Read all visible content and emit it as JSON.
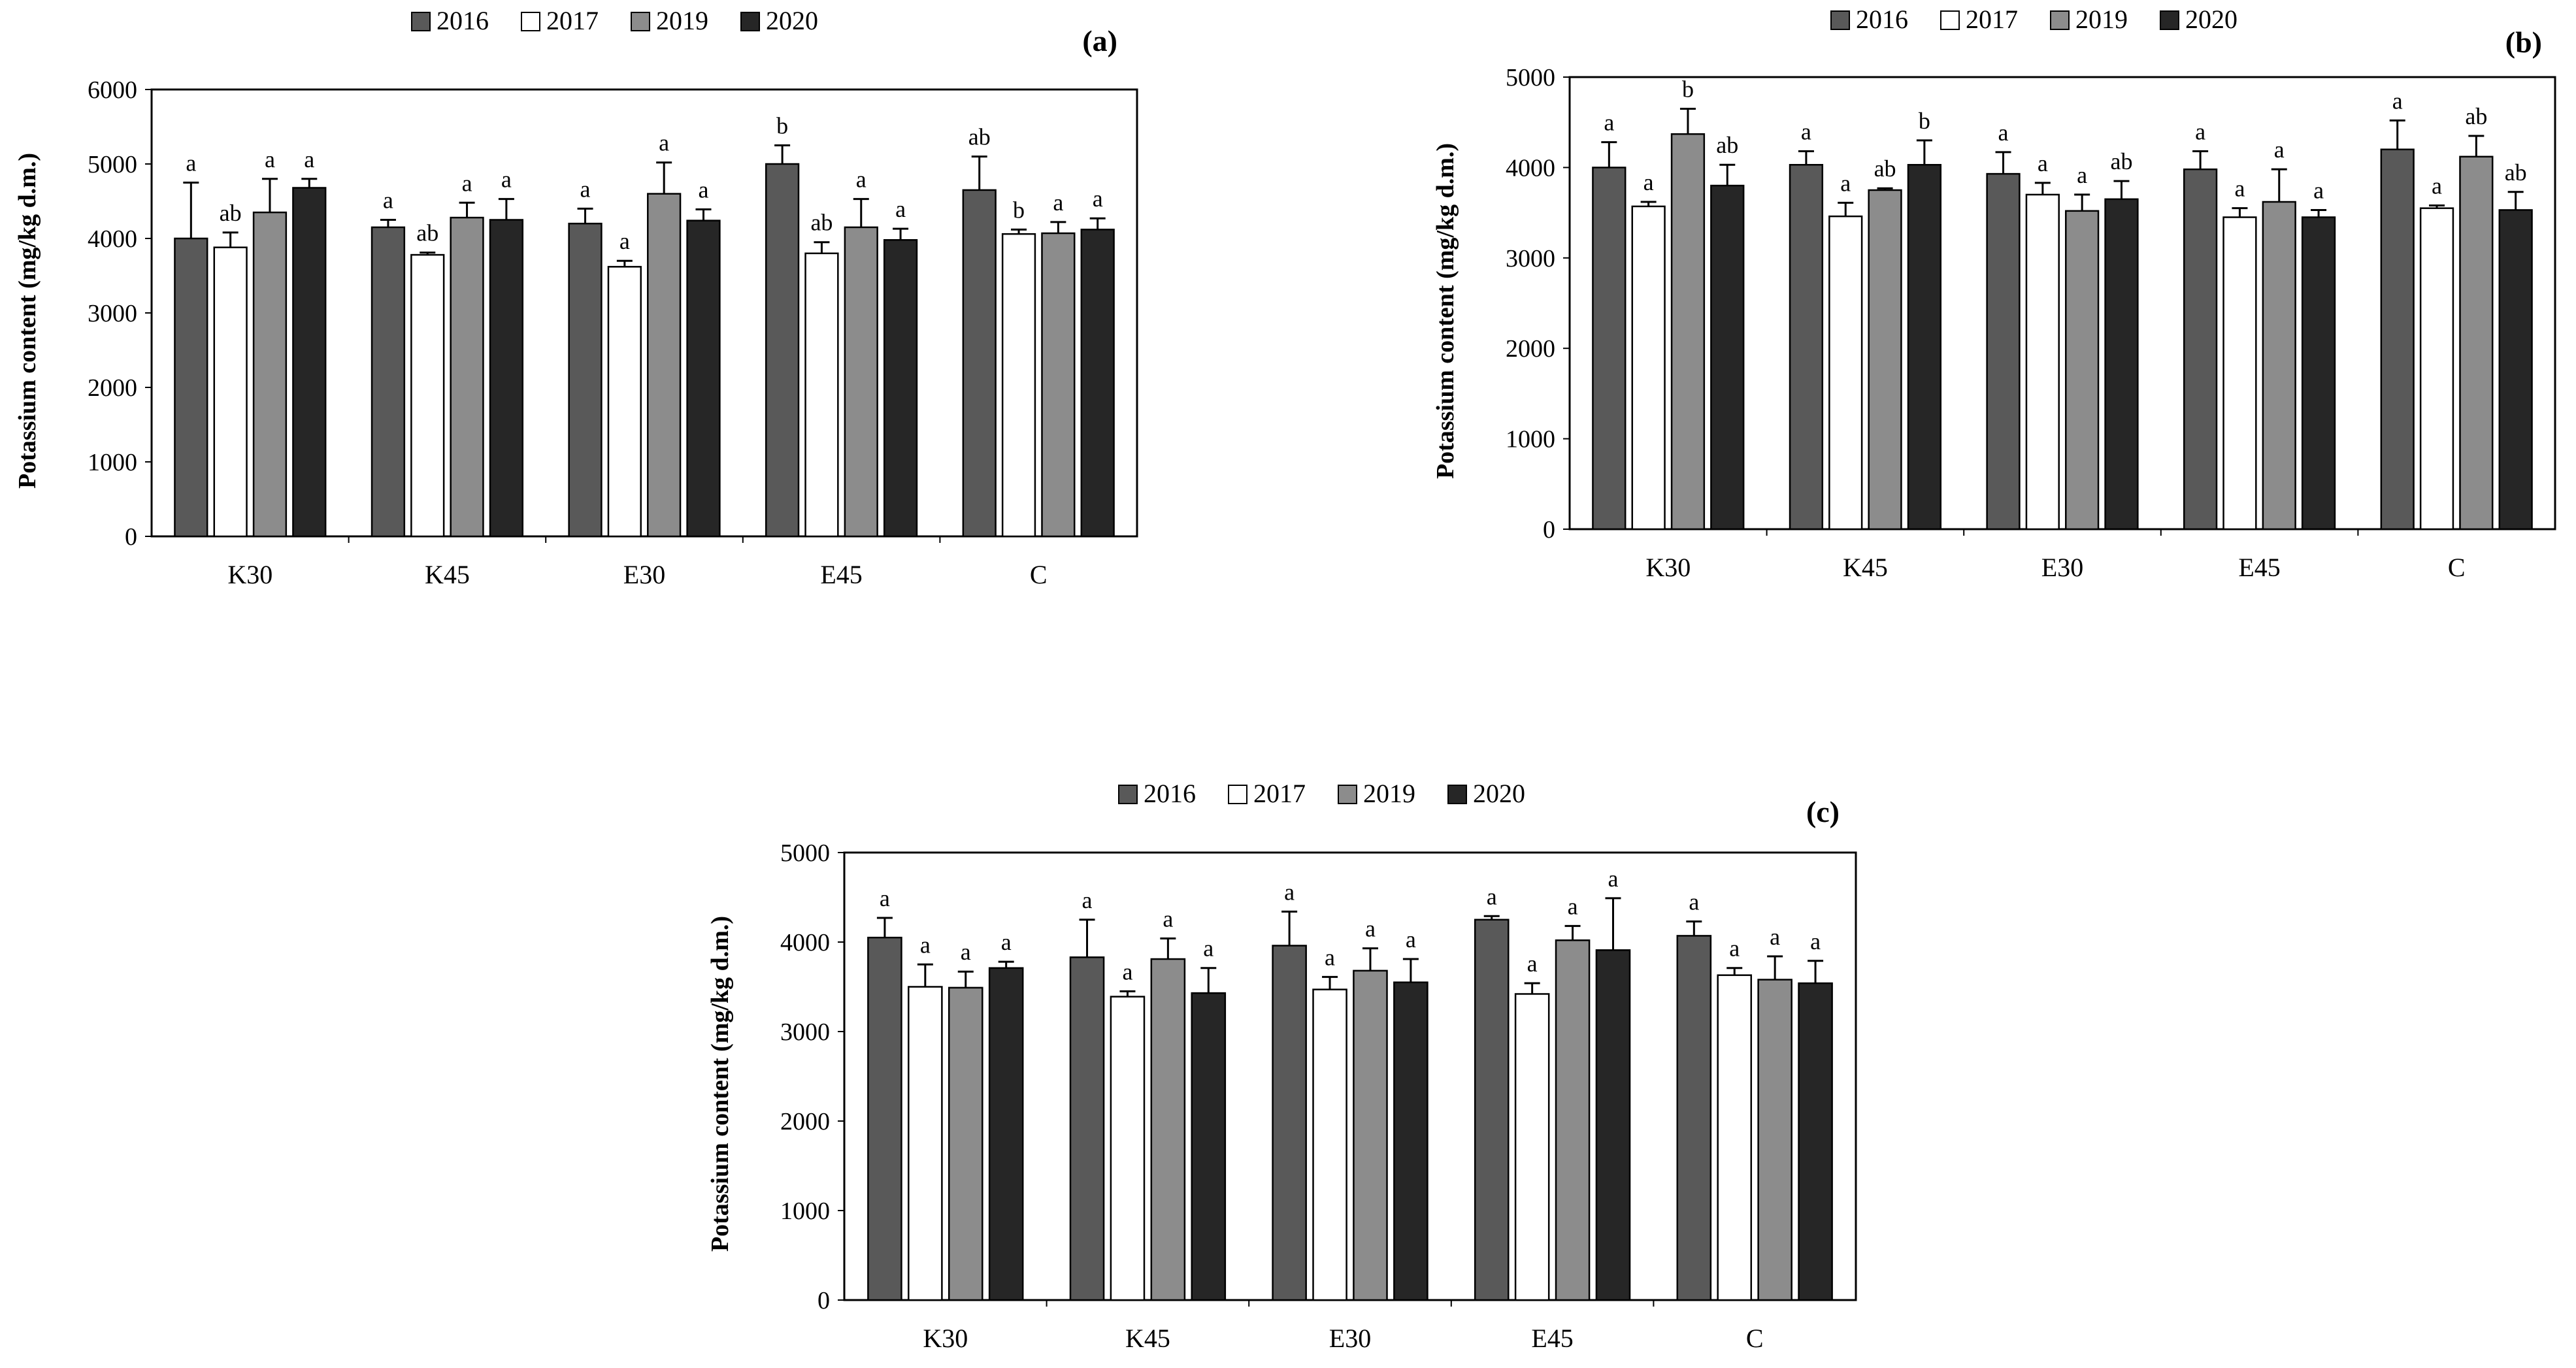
{
  "colors": {
    "y2016": "#595959",
    "y2017": "#ffffff",
    "y2019": "#8c8c8c",
    "y2020": "#262626",
    "stroke": "#000000",
    "axis": "#7f7f7f"
  },
  "chart_data": [
    {
      "type": "bar",
      "panel": "(a)",
      "title": "(a)",
      "ylabel": "Potassium content (mg/kg d.m.)",
      "xlabel": "",
      "ylim": [
        0,
        6000
      ],
      "yticks": [
        0,
        1000,
        2000,
        3000,
        4000,
        5000,
        6000
      ],
      "categories": [
        "K30",
        "K45",
        "E30",
        "E45",
        "C"
      ],
      "series": [
        {
          "name": "2016",
          "values": [
            4000,
            4150,
            4200,
            5000,
            4650
          ],
          "errors": [
            750,
            100,
            200,
            250,
            450
          ],
          "letters": [
            "a",
            "a",
            "a",
            "b",
            "ab"
          ]
        },
        {
          "name": "2017",
          "values": [
            3880,
            3780,
            3620,
            3800,
            4060
          ],
          "errors": [
            200,
            30,
            80,
            150,
            60
          ],
          "letters": [
            "ab",
            "ab",
            "a",
            "ab",
            "b"
          ]
        },
        {
          "name": "2019",
          "values": [
            4350,
            4280,
            4600,
            4150,
            4070
          ],
          "errors": [
            450,
            200,
            420,
            380,
            150
          ],
          "letters": [
            "a",
            "a",
            "a",
            "a",
            "a"
          ]
        },
        {
          "name": "2020",
          "values": [
            4680,
            4250,
            4240,
            3980,
            4120
          ],
          "errors": [
            120,
            280,
            150,
            150,
            150
          ],
          "letters": [
            "a",
            "a",
            "a",
            "a",
            "a"
          ]
        }
      ]
    },
    {
      "type": "bar",
      "panel": "(b)",
      "title": "(b)",
      "ylabel": "Potassium content (mg/kg d.m.)",
      "xlabel": "",
      "ylim": [
        0,
        5000
      ],
      "yticks": [
        0,
        1000,
        2000,
        3000,
        4000,
        5000
      ],
      "categories": [
        "K30",
        "K45",
        "E30",
        "E45",
        "C"
      ],
      "series": [
        {
          "name": "2016",
          "values": [
            4000,
            4030,
            3930,
            3980,
            4200
          ],
          "errors": [
            280,
            150,
            240,
            200,
            320
          ],
          "letters": [
            "a",
            "a",
            "a",
            "a",
            "a"
          ]
        },
        {
          "name": "2017",
          "values": [
            3570,
            3460,
            3700,
            3450,
            3550
          ],
          "errors": [
            50,
            150,
            130,
            100,
            30
          ],
          "letters": [
            "a",
            "a",
            "a",
            "a",
            "a"
          ]
        },
        {
          "name": "2019",
          "values": [
            4370,
            3750,
            3520,
            3620,
            4120
          ],
          "errors": [
            280,
            20,
            180,
            360,
            230
          ],
          "letters": [
            "b",
            "ab",
            "a",
            "a",
            "ab"
          ]
        },
        {
          "name": "2020",
          "values": [
            3800,
            4030,
            3650,
            3450,
            3530
          ],
          "errors": [
            230,
            270,
            200,
            80,
            200
          ],
          "letters": [
            "ab",
            "b",
            "ab",
            "a",
            "ab"
          ]
        }
      ]
    },
    {
      "type": "bar",
      "panel": "(c)",
      "title": "(c)",
      "ylabel": "Potassium content (mg/kg d.m.)",
      "xlabel": "",
      "ylim": [
        0,
        5000
      ],
      "yticks": [
        0,
        1000,
        2000,
        3000,
        4000,
        5000
      ],
      "categories": [
        "K30",
        "K45",
        "E30",
        "E45",
        "C"
      ],
      "series": [
        {
          "name": "2016",
          "values": [
            4050,
            3830,
            3960,
            4250,
            4070
          ],
          "errors": [
            220,
            420,
            380,
            40,
            160
          ],
          "letters": [
            "a",
            "a",
            "a",
            "a",
            "a"
          ]
        },
        {
          "name": "2017",
          "values": [
            3500,
            3390,
            3470,
            3420,
            3630
          ],
          "errors": [
            250,
            60,
            140,
            120,
            80
          ],
          "letters": [
            "a",
            "a",
            "a",
            "a",
            "a"
          ]
        },
        {
          "name": "2019",
          "values": [
            3490,
            3810,
            3680,
            4020,
            3580
          ],
          "errors": [
            180,
            230,
            250,
            160,
            260
          ],
          "letters": [
            "a",
            "a",
            "a",
            "a",
            "a"
          ]
        },
        {
          "name": "2020",
          "values": [
            3710,
            3430,
            3550,
            3910,
            3540
          ],
          "errors": [
            70,
            280,
            260,
            580,
            250
          ],
          "letters": [
            "a",
            "a",
            "a",
            "a",
            "a"
          ]
        }
      ]
    }
  ]
}
